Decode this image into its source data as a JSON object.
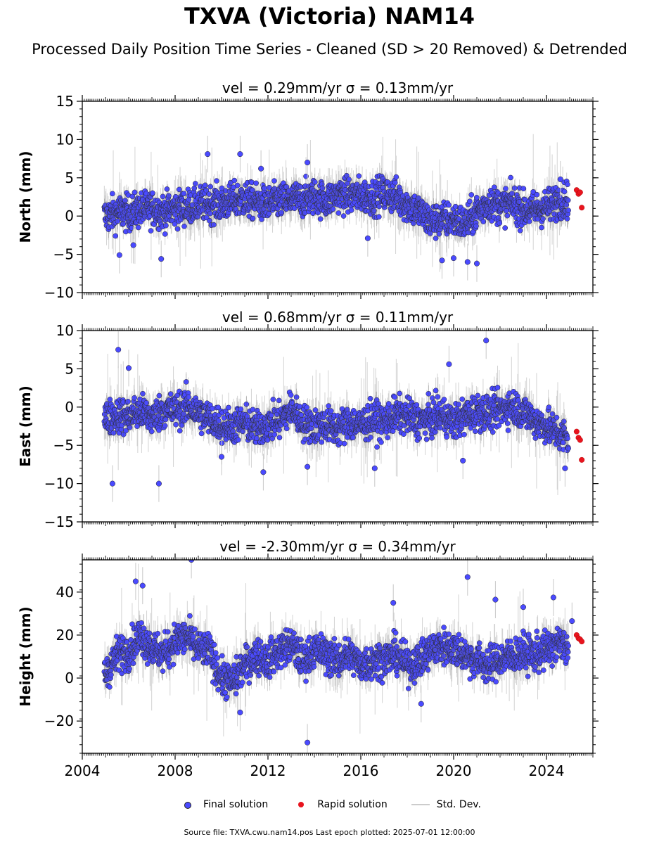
{
  "title": "TXVA (Victoria) NAM14",
  "subtitle": "Processed Daily Position Time Series - Cleaned (SD > 20 Removed) & Detrended",
  "legend": {
    "final": "Final solution",
    "rapid": "Rapid solution",
    "std": "Std. Dev."
  },
  "source": "Source file: TXVA.cwu.nam14.pos  Last epoch plotted: 2025-07-01 12:00:00",
  "colors": {
    "final": "#4a4aff",
    "rapid": "#e8141e",
    "std": "#c8c8c8",
    "edge": "#222222"
  },
  "chart_data": [
    {
      "type": "scatter",
      "title": "vel = 0.29mm/yr   σ = 0.13mm/yr",
      "ylabel": "North (mm)",
      "xlim": [
        2004.0,
        2026.0
      ],
      "ylim": [
        -10,
        15
      ],
      "yticks": [
        -10,
        -5,
        0,
        5,
        10,
        15
      ],
      "xticks": [
        "2004",
        "2008",
        "2012",
        "2016",
        "2020",
        "2024"
      ],
      "series": [
        {
          "name": "Final solution",
          "x": [
            2005.0,
            2005.5,
            2006.0,
            2006.5,
            2007.0,
            2007.5,
            2008.0,
            2008.5,
            2009.0,
            2009.5,
            2010.0,
            2010.5,
            2011.0,
            2011.5,
            2012.0,
            2012.5,
            2013.0,
            2013.5,
            2014.0,
            2014.5,
            2015.0,
            2015.5,
            2016.0,
            2016.5,
            2017.0,
            2017.5,
            2018.0,
            2018.5,
            2019.0,
            2019.5,
            2020.0,
            2020.5,
            2021.0,
            2021.5,
            2022.0,
            2022.5,
            2023.0,
            2023.5,
            2024.0,
            2024.5,
            2024.95
          ],
          "y": [
            0.0,
            0.5,
            0.4,
            0.8,
            1.0,
            0.6,
            0.9,
            1.2,
            1.5,
            1.7,
            1.6,
            2.0,
            2.2,
            1.8,
            1.5,
            2.0,
            2.1,
            2.2,
            2.6,
            2.0,
            2.8,
            2.6,
            2.7,
            2.5,
            3.0,
            2.6,
            1.5,
            0.6,
            -0.8,
            -0.4,
            -0.5,
            -1.0,
            0.5,
            1.8,
            1.3,
            1.7,
            0.8,
            0.8,
            1.2,
            2.0,
            2.2
          ]
        },
        {
          "name": "Rapid solution",
          "x": [
            2025.3,
            2025.38,
            2025.45,
            2025.52
          ],
          "y": [
            3.4,
            2.9,
            3.1,
            1.1
          ]
        }
      ],
      "outliers": {
        "x": [
          2005.6,
          2006.2,
          2007.4,
          2009.4,
          2010.8,
          2011.7,
          2013.7,
          2016.3,
          2019.5,
          2020.0,
          2020.6,
          2021.0,
          2024.6
        ],
        "y": [
          -5.1,
          -3.8,
          -5.6,
          8.1,
          8.1,
          6.2,
          7.0,
          -2.9,
          -5.8,
          -5.5,
          -6.0,
          -6.2,
          4.8
        ]
      }
    },
    {
      "type": "scatter",
      "title": "vel = 0.68mm/yr   σ = 0.11mm/yr",
      "ylabel": "East (mm)",
      "xlim": [
        2004.0,
        2026.0
      ],
      "ylim": [
        -15,
        10
      ],
      "yticks": [
        -15,
        -10,
        -5,
        0,
        5,
        10
      ],
      "xticks": [
        "2004",
        "2008",
        "2012",
        "2016",
        "2020",
        "2024"
      ],
      "series": [
        {
          "name": "Final solution",
          "x": [
            2005.0,
            2005.5,
            2006.0,
            2006.5,
            2007.0,
            2007.5,
            2008.0,
            2008.5,
            2009.0,
            2009.5,
            2010.0,
            2010.5,
            2011.0,
            2011.5,
            2012.0,
            2012.5,
            2013.0,
            2013.5,
            2014.0,
            2014.5,
            2015.0,
            2015.5,
            2016.0,
            2016.5,
            2017.0,
            2017.5,
            2018.0,
            2018.5,
            2019.0,
            2019.5,
            2020.0,
            2020.5,
            2021.0,
            2021.5,
            2022.0,
            2022.5,
            2023.0,
            2023.5,
            2024.0,
            2024.5,
            2024.95
          ],
          "y": [
            -1.5,
            -1.0,
            -1.2,
            -0.6,
            -1.4,
            -0.4,
            -0.5,
            0.2,
            -0.8,
            -1.6,
            -2.2,
            -2.5,
            -2.0,
            -3.0,
            -2.2,
            -1.8,
            -0.2,
            -2.0,
            -2.5,
            -2.3,
            -2.8,
            -2.0,
            -2.4,
            -1.6,
            -2.0,
            -1.0,
            -1.2,
            -1.8,
            -1.5,
            -1.0,
            -2.0,
            -1.2,
            -0.5,
            -0.8,
            -0.4,
            0.2,
            -0.6,
            -1.8,
            -2.5,
            -3.5,
            -4.2
          ]
        },
        {
          "name": "Rapid solution",
          "x": [
            2025.3,
            2025.38,
            2025.45,
            2025.52
          ],
          "y": [
            -3.2,
            -4.0,
            -4.3,
            -6.9
          ]
        }
      ],
      "outliers": {
        "x": [
          2005.3,
          2005.55,
          2006.0,
          2007.3,
          2010.0,
          2011.8,
          2013.7,
          2016.6,
          2019.8,
          2020.4,
          2021.4,
          2024.8
        ],
        "y": [
          -10.0,
          7.5,
          5.1,
          -10.0,
          -6.5,
          -8.5,
          -7.8,
          -8.0,
          5.6,
          -7.0,
          8.7,
          -8.0
        ]
      }
    },
    {
      "type": "scatter",
      "title": "vel = -2.30mm/yr   σ = 0.34mm/yr",
      "ylabel": "Height (mm)",
      "xlim": [
        2004.0,
        2026.0
      ],
      "ylim": [
        -35,
        55
      ],
      "yticks": [
        -20,
        0,
        20,
        40
      ],
      "xticks": [
        "2004",
        "2008",
        "2012",
        "2016",
        "2020",
        "2024"
      ],
      "series": [
        {
          "name": "Final solution",
          "x": [
            2005.0,
            2005.5,
            2006.0,
            2006.5,
            2007.0,
            2007.5,
            2008.0,
            2008.5,
            2009.0,
            2009.5,
            2010.0,
            2010.5,
            2011.0,
            2011.5,
            2012.0,
            2012.5,
            2013.0,
            2013.5,
            2014.0,
            2014.5,
            2015.0,
            2015.5,
            2016.0,
            2016.5,
            2017.0,
            2017.5,
            2018.0,
            2018.5,
            2019.0,
            2019.5,
            2020.0,
            2020.5,
            2021.0,
            2021.5,
            2022.0,
            2022.5,
            2023.0,
            2023.5,
            2024.0,
            2024.5,
            2024.95
          ],
          "y": [
            2.0,
            11.0,
            13.0,
            20.0,
            14.0,
            11.0,
            17.0,
            19.0,
            14.0,
            12.0,
            0.0,
            -2.0,
            6.0,
            11.0,
            8.0,
            13.0,
            15.0,
            8.0,
            13.0,
            11.0,
            8.0,
            11.0,
            6.0,
            8.0,
            9.0,
            11.0,
            6.0,
            8.0,
            13.0,
            15.0,
            14.0,
            11.0,
            8.0,
            6.0,
            9.0,
            10.0,
            12.0,
            11.0,
            13.0,
            16.0,
            14.0
          ]
        },
        {
          "name": "Rapid solution",
          "x": [
            2025.3,
            2025.38,
            2025.45,
            2025.52
          ],
          "y": [
            20.0,
            18.5,
            18.0,
            17.0
          ]
        }
      ],
      "outliers": {
        "x": [
          2006.3,
          2006.6,
          2008.7,
          2010.8,
          2013.7,
          2017.4,
          2018.6,
          2020.6,
          2021.8,
          2023.0,
          2024.3,
          2025.1
        ],
        "y": [
          45.0,
          43.0,
          55.0,
          -16.0,
          -30.0,
          35.0,
          -12.0,
          47.0,
          36.5,
          33.0,
          37.5,
          26.5
        ]
      }
    }
  ]
}
